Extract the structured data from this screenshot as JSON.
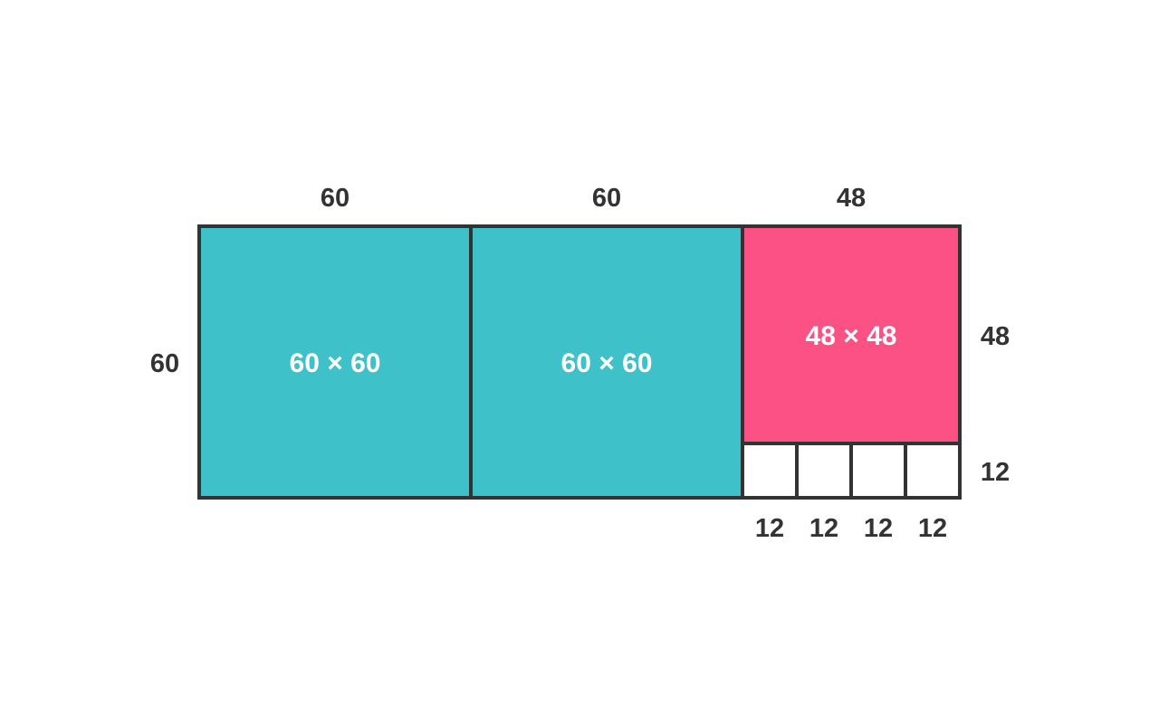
{
  "colors": {
    "square_large": "#3fc1c9",
    "square_medium": "#fc5185",
    "square_small": "#ffffff",
    "outline": "#333333",
    "text_dark": "#333333",
    "text_light": "#ffffff"
  },
  "top_labels": {
    "first": "60",
    "second": "60",
    "third": "48"
  },
  "left_label": "60",
  "right_labels": {
    "upper": "48",
    "lower": "12"
  },
  "bottom_labels": [
    "12",
    "12",
    "12",
    "12"
  ],
  "cells": {
    "large_1": "60 × 60",
    "large_2": "60 × 60",
    "medium": "48 × 48"
  }
}
